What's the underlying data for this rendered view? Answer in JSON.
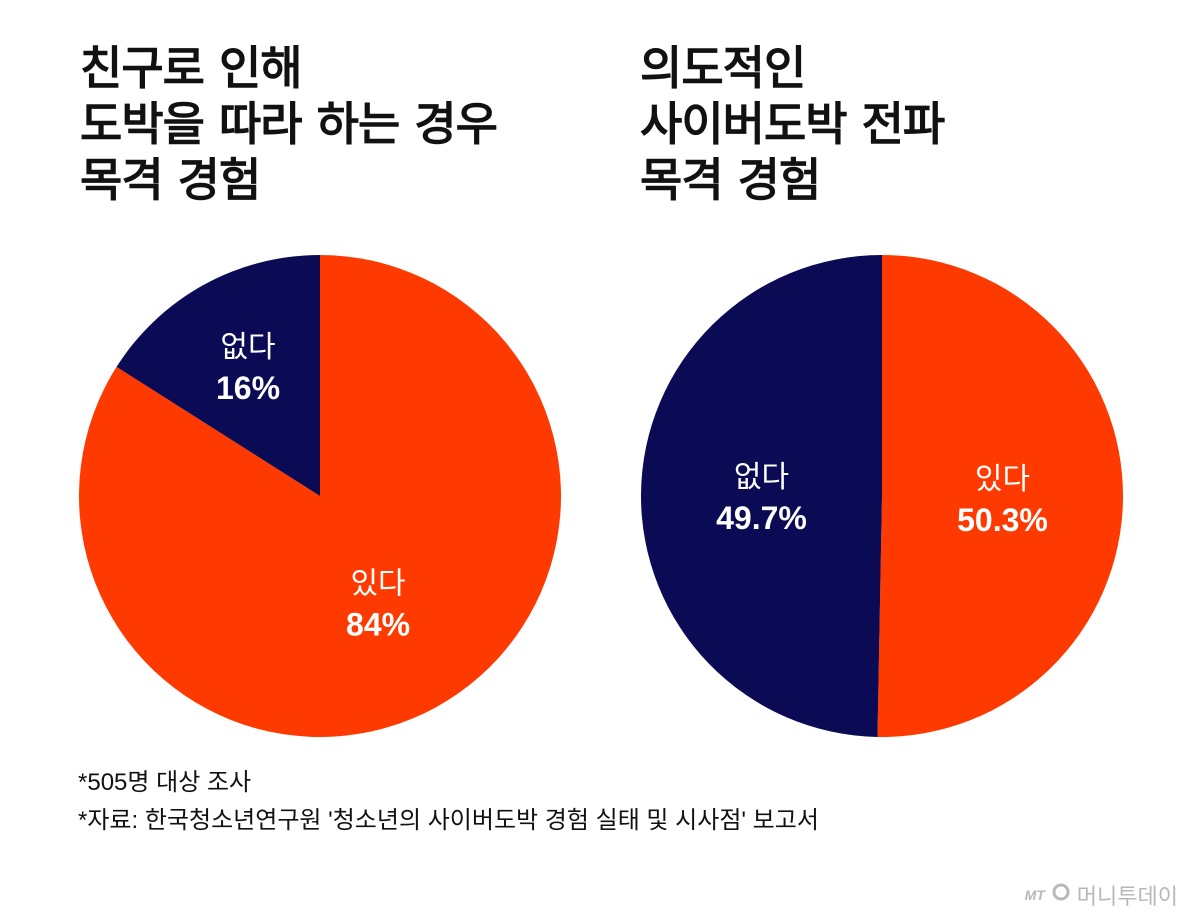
{
  "colors": {
    "yes": "#ff3a00",
    "no": "#0a0a55"
  },
  "chart_data": [
    {
      "type": "pie",
      "title_lines": [
        "친구로 인해",
        "도박을 따라 하는 경우",
        "목격 경험"
      ],
      "slices": [
        {
          "label": "있다",
          "value": 84,
          "pct_label": "84%",
          "color": "#ff3a00"
        },
        {
          "label": "없다",
          "value": 16,
          "pct_label": "16%",
          "color": "#0a0a55"
        }
      ]
    },
    {
      "type": "pie",
      "title_lines": [
        "의도적인",
        "사이버도박 전파",
        "목격 경험"
      ],
      "slices": [
        {
          "label": "있다",
          "value": 50.3,
          "pct_label": "50.3%",
          "color": "#ff3a00"
        },
        {
          "label": "없다",
          "value": 49.7,
          "pct_label": "49.7%",
          "color": "#0a0a55"
        }
      ]
    }
  ],
  "notes": [
    "*505명 대상 조사",
    "*자료: 한국청소년연구원 '청소년의 사이버도박 경험 실태 및 시사점' 보고서"
  ],
  "brand": {
    "logo_text": "MT",
    "name": "머니투데이"
  }
}
